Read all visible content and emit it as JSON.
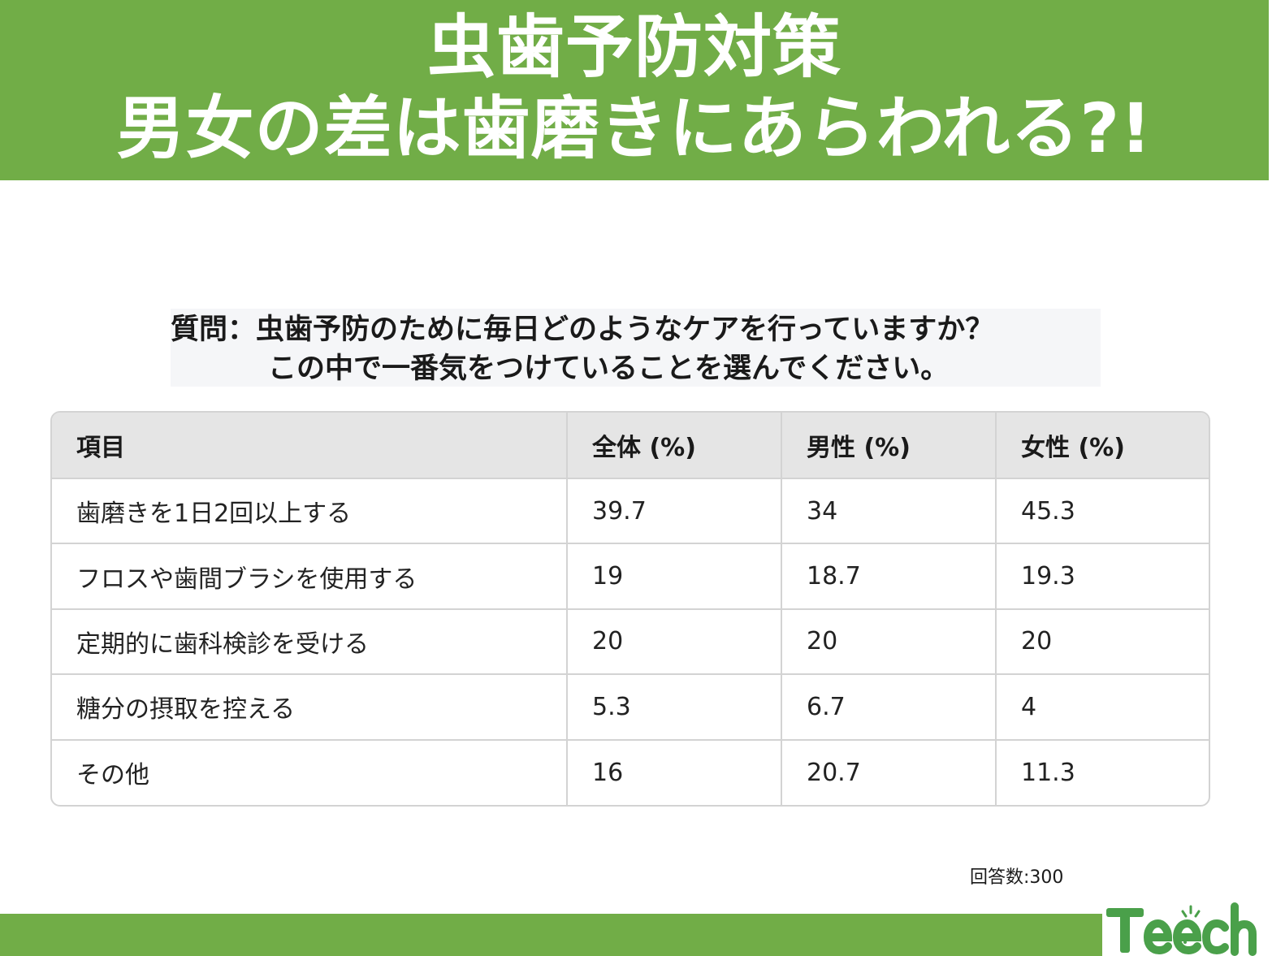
{
  "header": {
    "title_line1": "虫歯予防対策",
    "title_line2": "男女の差は歯磨きにあらわれる?!"
  },
  "question": {
    "line1": "質問：虫歯予防のために毎日どのようなケアを行っていますか？",
    "line2": "この中で一番気をつけていることを選んでください。"
  },
  "table": {
    "headers": [
      "項目",
      "全体 (%)",
      "男性 (%)",
      "女性 (%)"
    ],
    "rows": [
      [
        "歯磨きを1日2回以上する",
        "39.7",
        "34",
        "45.3"
      ],
      [
        "フロスや歯間ブラシを使用する",
        "19",
        "18.7",
        "19.3"
      ],
      [
        "定期的に歯科検診を受ける",
        "20",
        "20",
        "20"
      ],
      [
        "糖分の摂取を控える",
        "5.3",
        "6.7",
        "4"
      ],
      [
        "その他",
        "16",
        "20.7",
        "11.3"
      ]
    ]
  },
  "responses": "回答数:300",
  "logo": {
    "text": "Teech"
  },
  "colors": {
    "brand_green": "#71ad47",
    "header_bg": "#e5e5e5",
    "border": "#d3d3d3"
  }
}
